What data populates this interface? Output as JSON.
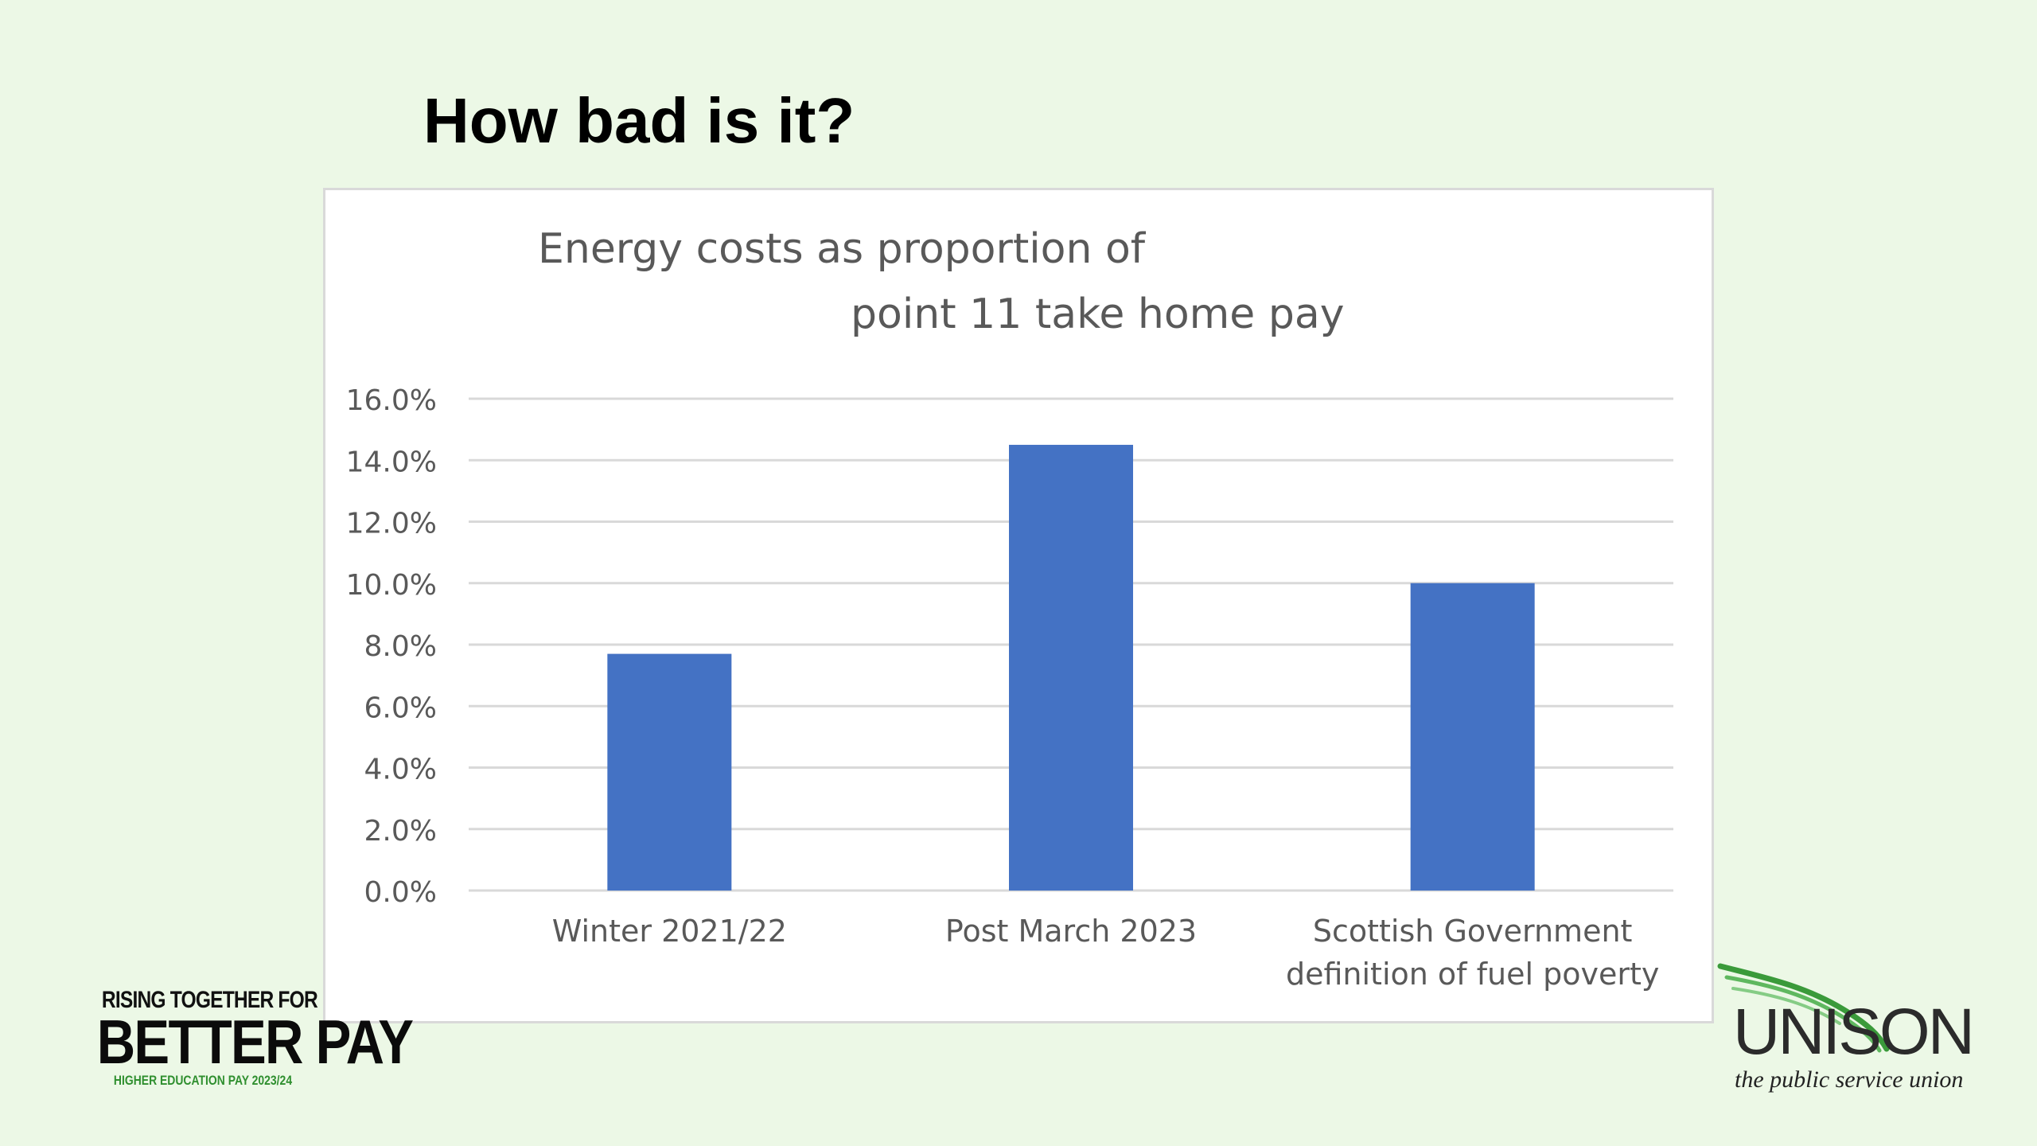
{
  "slide": {
    "title": "How bad is it?"
  },
  "branding": {
    "left_line1": "RISING TOGETHER FOR",
    "left_line2": "BETTER PAY",
    "left_line3": "HIGHER EDUCATION PAY 2023/24",
    "right_logo": "UNISON",
    "right_tagline": "the public service union"
  },
  "colors": {
    "background": "#ecf8e6",
    "bar": "#4472c4",
    "gridline": "#d9d9d9",
    "axis_text": "#595959",
    "brand_green": "#2f8f2f"
  },
  "chart_data": {
    "type": "bar",
    "title_line1": "Energy costs as proportion of",
    "title_line2": "point 11 take home pay",
    "categories": [
      [
        "Winter 2021/22"
      ],
      [
        "Post March 2023"
      ],
      [
        "Scottish Government",
        "definition of fuel poverty"
      ]
    ],
    "values": [
      0.077,
      0.145,
      0.1
    ],
    "yticks": [
      "0.0%",
      "2.0%",
      "4.0%",
      "6.0%",
      "8.0%",
      "10.0%",
      "12.0%",
      "14.0%",
      "16.0%"
    ],
    "ylim": [
      0,
      0.16
    ],
    "ystep": 0.02,
    "grid": true,
    "legend": "none"
  }
}
